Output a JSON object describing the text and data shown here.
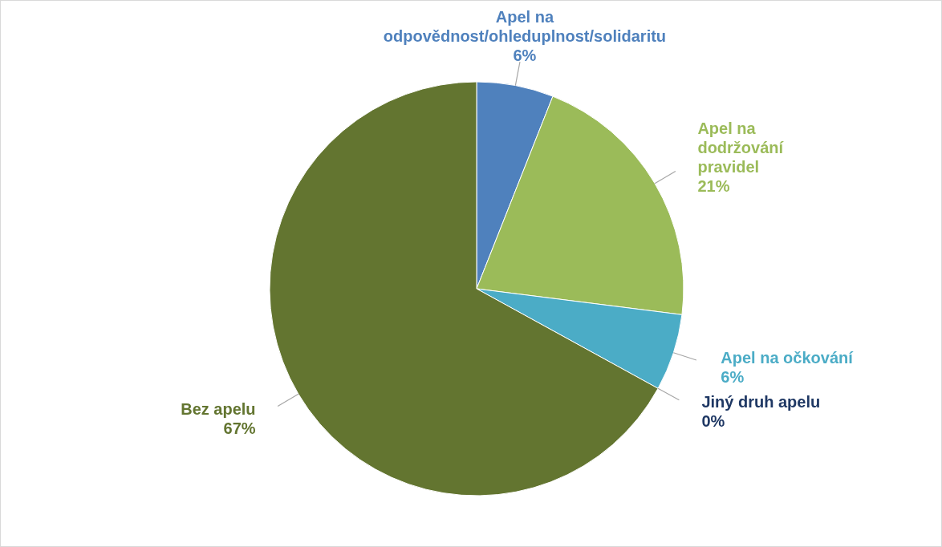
{
  "chart_data": {
    "type": "pie",
    "categories": [
      "Apel na odpovědnost/ohleduplnost/solidaritu",
      "Apel na dodržování pravidel",
      "Apel na očkování",
      "Jiný druh apelu",
      "Bez apelu"
    ],
    "values": [
      6,
      21,
      6,
      0,
      67
    ],
    "colors": [
      "#4f81bd",
      "#9bbb59",
      "#4bacc6",
      "#1f3864",
      "#637530"
    ],
    "value_labels": [
      "6%",
      "21%",
      "6%",
      "0%",
      "67%"
    ]
  }
}
